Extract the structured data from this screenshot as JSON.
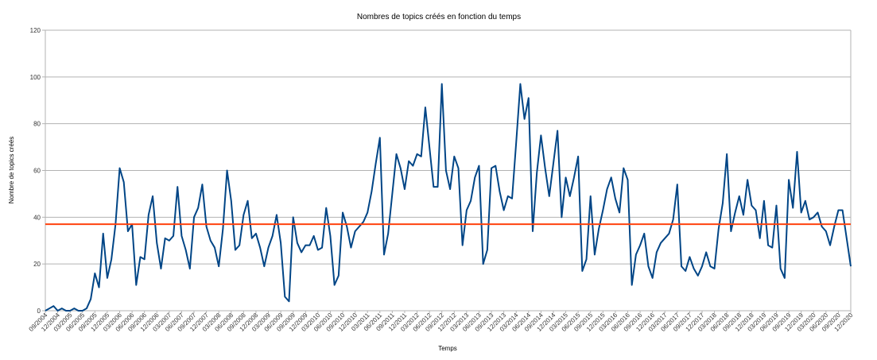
{
  "chart_data": {
    "type": "line",
    "title": "Nombres de topics créés en fonction du temps",
    "xlabel": "Temps",
    "ylabel": "Nombre de topics créés",
    "ylim": [
      0,
      120
    ],
    "yticks": [
      0,
      20,
      40,
      60,
      80,
      100,
      120
    ],
    "grid": true,
    "legend": "none",
    "colors": {
      "series": "#004586",
      "reference": "#ff420e"
    },
    "reference_line": {
      "value": 37
    },
    "x_tick_labels": [
      "09/2004",
      "12/2004",
      "03/2005",
      "06/2005",
      "09/2005",
      "12/2005",
      "03/2006",
      "06/2006",
      "09/2006",
      "12/2006",
      "03/2007",
      "06/2007",
      "09/2007",
      "12/2007",
      "03/2008",
      "06/2008",
      "09/2008",
      "12/2008",
      "03/2009",
      "06/2009",
      "09/2009",
      "12/2009",
      "03/2010",
      "06/2010",
      "09/2010",
      "12/2010",
      "03/2011",
      "06/2011",
      "09/2011",
      "12/2011",
      "03/2012",
      "06/2012",
      "09/2012",
      "12/2012",
      "03/2013",
      "06/2013",
      "09/2013",
      "12/2013",
      "03/2014",
      "06/2014",
      "09/2014",
      "12/2014",
      "03/2015",
      "06/2015",
      "09/2015",
      "12/2015",
      "03/2016",
      "06/2016",
      "09/2016",
      "12/2016",
      "03/2017",
      "06/2017",
      "09/2017",
      "12/2017",
      "03/2018",
      "06/2018",
      "09/2018",
      "12/2018",
      "03/2019",
      "06/2019",
      "09/2019",
      "12/2019",
      "03/2020",
      "06/2020",
      "09/2020",
      "12/2020"
    ],
    "series": [
      {
        "values": [
          0,
          1,
          2,
          0,
          1,
          0,
          0,
          1,
          0,
          0,
          1,
          5,
          16,
          10,
          33,
          14,
          22,
          37,
          61,
          55,
          34,
          37,
          11,
          23,
          22,
          41,
          49,
          29,
          18,
          31,
          30,
          32,
          53,
          32,
          26,
          18,
          40,
          44,
          54,
          36,
          30,
          27,
          19,
          35,
          60,
          47,
          26,
          28,
          41,
          47,
          31,
          33,
          27,
          19,
          27,
          32,
          41,
          29,
          6,
          4,
          40,
          29,
          25,
          28,
          28,
          32,
          26,
          27,
          44,
          32,
          11,
          15,
          42,
          36,
          27,
          34,
          36,
          38,
          42,
          51,
          63,
          74,
          24,
          33,
          50,
          67,
          61,
          52,
          64,
          62,
          67,
          66,
          87,
          70,
          53,
          53,
          97,
          60,
          52,
          66,
          61,
          28,
          43,
          47,
          57,
          62,
          20,
          26,
          61,
          62,
          51,
          43,
          49,
          48,
          72,
          97,
          82,
          91,
          34,
          59,
          75,
          61,
          49,
          63,
          77,
          40,
          57,
          49,
          57,
          66,
          17,
          22,
          49,
          24,
          35,
          43,
          52,
          57,
          48,
          42,
          61,
          56,
          11,
          24,
          28,
          33,
          19,
          14,
          25,
          29,
          31,
          33,
          39,
          54,
          19,
          17,
          23,
          18,
          15,
          19,
          25,
          19,
          18,
          35,
          46,
          67,
          34,
          42,
          49,
          41,
          56,
          45,
          43,
          31,
          47,
          28,
          27,
          45,
          18,
          14,
          56,
          44,
          68,
          42,
          47,
          39,
          40,
          42,
          36,
          34,
          28,
          36,
          43,
          43,
          31,
          19
        ]
      }
    ]
  }
}
